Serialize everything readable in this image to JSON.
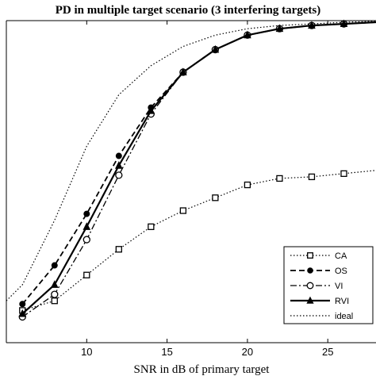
{
  "chart_data": {
    "type": "line",
    "title": "PD in multiple target scenario (3 interfering targets)",
    "xlabel": "SNR in dB of primary target",
    "ylabel": "",
    "xlim": [
      5,
      28
    ],
    "ylim": [
      0,
      1
    ],
    "xticks": [
      10,
      15,
      20,
      25
    ],
    "grid": false,
    "legend_position": "bottom-right",
    "series": [
      {
        "name": "CA",
        "style": "dotted",
        "marker": "square",
        "x": [
          6,
          8,
          10,
          12,
          14,
          16,
          18,
          20,
          22,
          24,
          26,
          28
        ],
        "y": [
          0.1,
          0.13,
          0.21,
          0.29,
          0.36,
          0.41,
          0.45,
          0.49,
          0.51,
          0.515,
          0.525,
          0.535
        ]
      },
      {
        "name": "OS",
        "style": "dashed",
        "marker": "filled-circle",
        "x": [
          6,
          8,
          10,
          12,
          14,
          16,
          18,
          20,
          22,
          24,
          26,
          28
        ],
        "y": [
          0.12,
          0.24,
          0.4,
          0.58,
          0.73,
          0.84,
          0.91,
          0.955,
          0.975,
          0.985,
          0.99,
          0.995
        ]
      },
      {
        "name": "VI",
        "style": "dashdot",
        "marker": "open-circle",
        "x": [
          6,
          8,
          10,
          12,
          14,
          16,
          18,
          20,
          22,
          24,
          26,
          28
        ],
        "y": [
          0.08,
          0.15,
          0.32,
          0.52,
          0.71,
          0.84,
          0.91,
          0.955,
          0.975,
          0.985,
          0.99,
          0.995
        ]
      },
      {
        "name": "RVI",
        "style": "solid",
        "marker": "filled-triangle",
        "x": [
          6,
          8,
          10,
          12,
          14,
          16,
          18,
          20,
          22,
          24,
          26,
          28
        ],
        "y": [
          0.09,
          0.18,
          0.36,
          0.55,
          0.72,
          0.84,
          0.91,
          0.955,
          0.975,
          0.985,
          0.99,
          0.995
        ]
      },
      {
        "name": "ideal",
        "style": "dotted",
        "marker": "none",
        "x": [
          5,
          6,
          8,
          10,
          12,
          14,
          16,
          18,
          20,
          22,
          24,
          26,
          28
        ],
        "y": [
          0.13,
          0.18,
          0.38,
          0.61,
          0.77,
          0.86,
          0.92,
          0.955,
          0.975,
          0.985,
          0.99,
          0.995,
          0.998
        ]
      }
    ]
  }
}
